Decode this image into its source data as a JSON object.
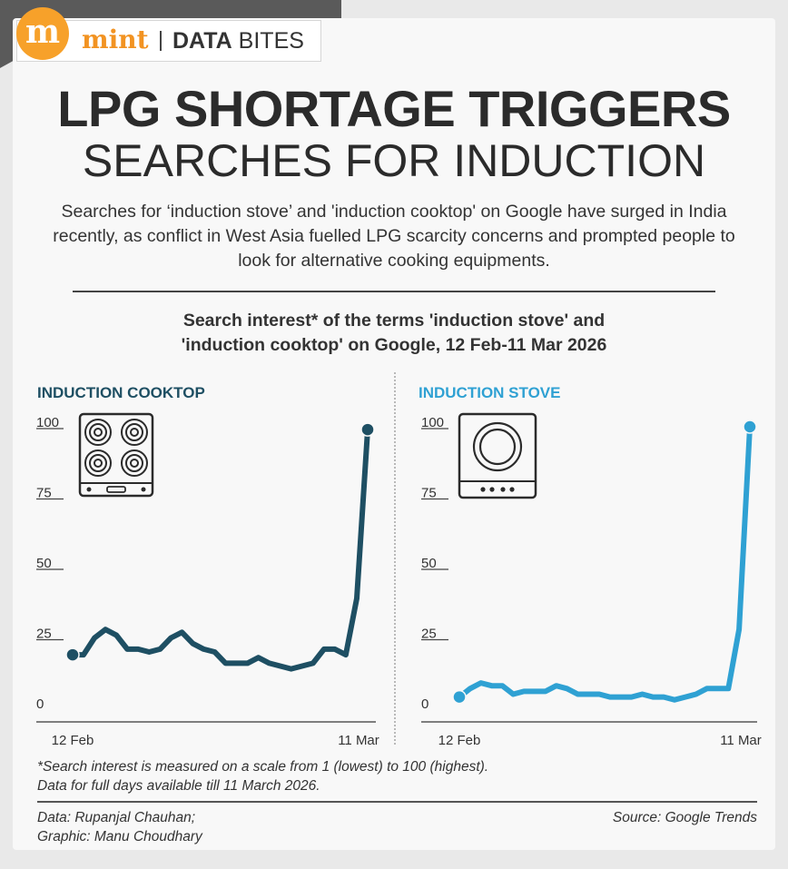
{
  "brand": {
    "logo_letter": "m",
    "name": "mint",
    "section_bold": "DATA",
    "section_rest": " BITES"
  },
  "headline": {
    "line1": "LPG SHORTAGE TRIGGERS",
    "line2": "SEARCHES FOR INDUCTION"
  },
  "intro": "Searches for ‘induction stove’ and 'induction cooktop' on Google have surged in India recently, as conflict in West Asia fuelled LPG scarcity concerns and prompted people to look for alternative cooking equipments.",
  "chart_subtitle_line1": "Search interest* of the terms 'induction stove' and",
  "chart_subtitle_line2": "'induction cooktop' on Google, 12 Feb-11 Mar 2026",
  "colors": {
    "cooktop": "#1e4f63",
    "stove": "#2fa1d3",
    "logo": "#f7a12a"
  },
  "chart_data": [
    {
      "type": "line",
      "title": "INDUCTION COOKTOP",
      "icon": "cooktop-four-burner-icon",
      "y_ticks": [
        0,
        25,
        50,
        75,
        100
      ],
      "ylim": [
        0,
        100
      ],
      "x_tick_labels": [
        "12 Feb",
        "11 Mar"
      ],
      "x": [
        "12 Feb",
        "13 Feb",
        "14 Feb",
        "15 Feb",
        "16 Feb",
        "17 Feb",
        "18 Feb",
        "19 Feb",
        "20 Feb",
        "21 Feb",
        "22 Feb",
        "23 Feb",
        "24 Feb",
        "25 Feb",
        "26 Feb",
        "27 Feb",
        "28 Feb",
        "1 Mar",
        "2 Mar",
        "3 Mar",
        "4 Mar",
        "5 Mar",
        "6 Mar",
        "7 Mar",
        "8 Mar",
        "9 Mar",
        "10 Mar",
        "11 Mar"
      ],
      "series": [
        {
          "values": [
            19,
            19,
            25,
            28,
            26,
            21,
            21,
            20,
            21,
            25,
            27,
            23,
            21,
            20,
            16,
            16,
            16,
            18,
            16,
            15,
            14,
            15,
            16,
            21,
            21,
            19,
            39,
            99
          ]
        }
      ]
    },
    {
      "type": "line",
      "title": "INDUCTION STOVE",
      "icon": "single-burner-stove-icon",
      "y_ticks": [
        0,
        25,
        50,
        75,
        100
      ],
      "ylim": [
        0,
        100
      ],
      "x_tick_labels": [
        "12 Feb",
        "11 Mar"
      ],
      "x": [
        "12 Feb",
        "13 Feb",
        "14 Feb",
        "15 Feb",
        "16 Feb",
        "17 Feb",
        "18 Feb",
        "19 Feb",
        "20 Feb",
        "21 Feb",
        "22 Feb",
        "23 Feb",
        "24 Feb",
        "25 Feb",
        "26 Feb",
        "27 Feb",
        "28 Feb",
        "1 Mar",
        "2 Mar",
        "3 Mar",
        "4 Mar",
        "5 Mar",
        "6 Mar",
        "7 Mar",
        "8 Mar",
        "9 Mar",
        "10 Mar",
        "11 Mar"
      ],
      "series": [
        {
          "values": [
            4,
            7,
            9,
            8,
            8,
            5,
            6,
            6,
            6,
            8,
            7,
            5,
            5,
            5,
            4,
            4,
            4,
            5,
            4,
            4,
            3,
            4,
            5,
            7,
            7,
            7,
            28,
            100
          ]
        }
      ]
    }
  ],
  "footnote_line1": "*Search interest is measured on a scale from 1 (lowest) to 100 (highest).",
  "footnote_line2": "Data for full days available till 11 March 2026.",
  "credits_line1": "Data: Rupanjal Chauhan;",
  "credits_line2": "Graphic: Manu Choudhary",
  "source": "Source: Google Trends"
}
